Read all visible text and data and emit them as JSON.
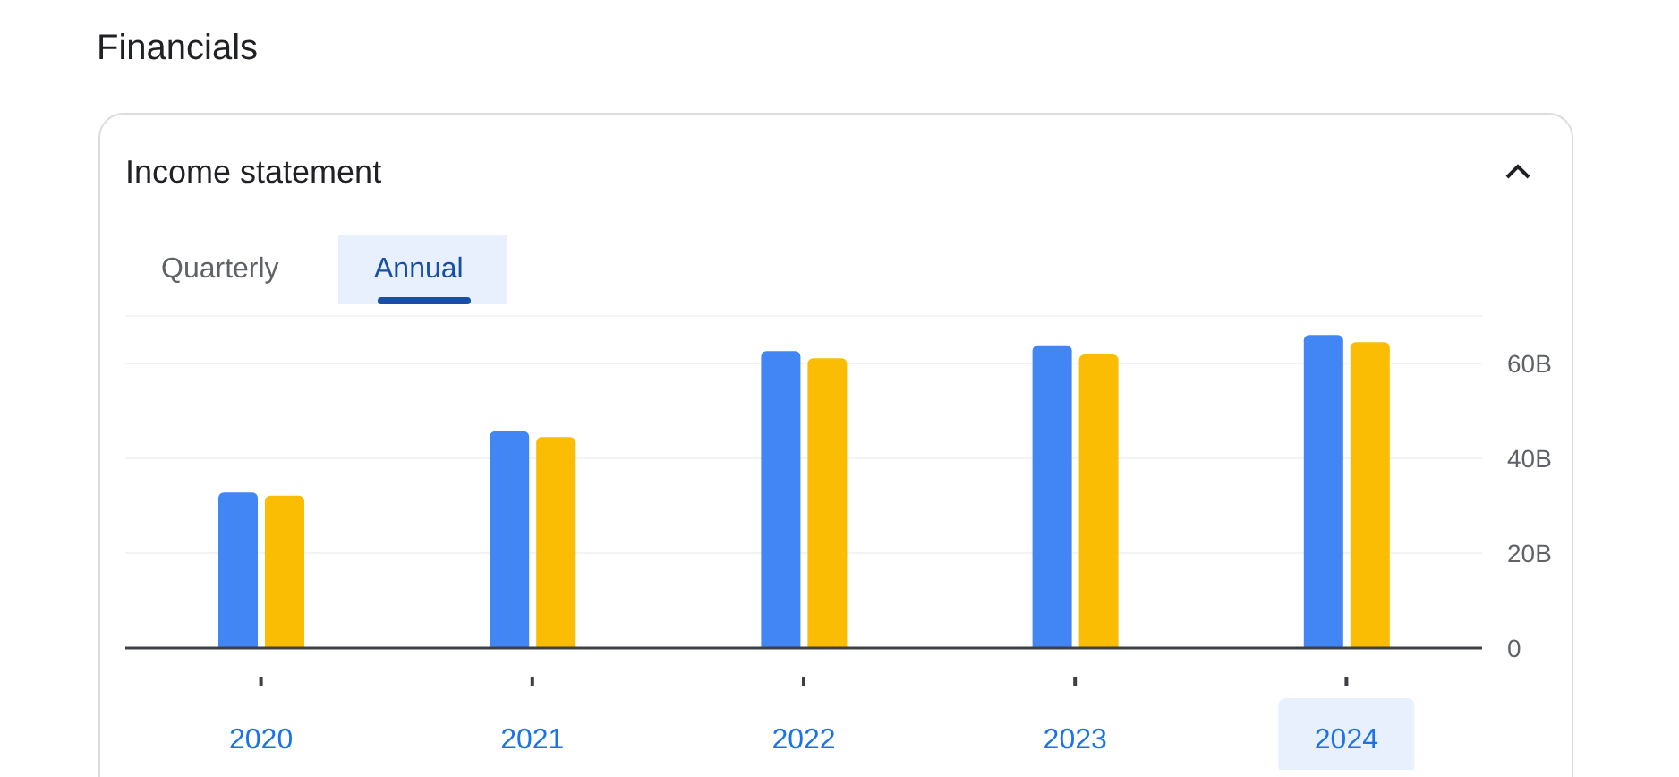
{
  "chart_data": {
    "type": "bar",
    "title": "Financials",
    "subtitle": "Income statement",
    "annotations": [
      "Quarterly",
      "Annual"
    ],
    "categories": [
      "2020",
      "2021",
      "2022",
      "2023",
      "2024"
    ],
    "series": [
      {
        "color": "#4285f4",
        "values": [
          32.8,
          45.7,
          62.6,
          63.8,
          66.0
        ]
      },
      {
        "color": "#fbbc04",
        "values": [
          32.1,
          44.5,
          61.1,
          61.9,
          64.5
        ]
      }
    ],
    "ylim": [
      0,
      70
    ],
    "yticks": [
      {
        "value": 0,
        "label": "0"
      },
      {
        "value": 20,
        "label": "20B"
      },
      {
        "value": 40,
        "label": "40B"
      },
      {
        "value": 60,
        "label": "60B"
      }
    ],
    "grid": "y",
    "legend": false
  }
}
